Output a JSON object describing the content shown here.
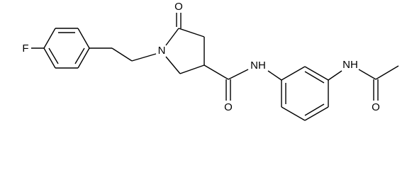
{
  "atoms": [
    {
      "label": "F"
    },
    {
      "label": "N"
    },
    {
      "label": "O"
    },
    {
      "label": "O"
    },
    {
      "label": "NH"
    },
    {
      "label": "NH"
    },
    {
      "label": "O"
    }
  ]
}
